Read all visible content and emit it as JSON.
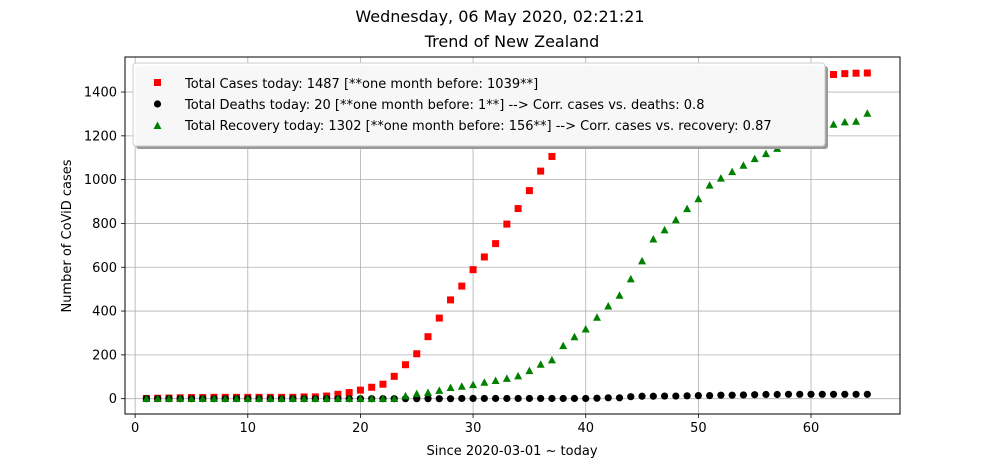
{
  "chart_data": {
    "type": "scatter",
    "supertitle": "Wednesday, 06 May 2020, 02:21:21",
    "title": "Trend of New Zealand",
    "xlabel": "Since 2020-03-01 ~ today",
    "ylabel": "Number of CoViD cases",
    "xlim": [
      -0.9,
      67.9
    ],
    "ylim": [
      -70,
      1560
    ],
    "x_ticks": [
      0,
      10,
      20,
      30,
      40,
      50,
      60
    ],
    "y_ticks": [
      0,
      200,
      400,
      600,
      800,
      1000,
      1200,
      1400
    ],
    "grid": true,
    "legend_position": "upper-left",
    "series": [
      {
        "name": "Total Cases today: 1487 [**one month before: 1039**]",
        "marker": "square",
        "color": "#ff0000",
        "x": [
          1,
          2,
          3,
          4,
          5,
          6,
          7,
          8,
          9,
          10,
          11,
          12,
          13,
          14,
          15,
          16,
          17,
          18,
          19,
          20,
          21,
          22,
          23,
          24,
          25,
          26,
          27,
          28,
          29,
          30,
          31,
          32,
          33,
          34,
          35,
          36,
          37,
          38,
          39,
          40,
          41,
          42,
          43,
          44,
          45,
          46,
          47,
          48,
          49,
          50,
          51,
          52,
          53,
          54,
          55,
          56,
          57,
          58,
          59,
          60,
          61,
          62,
          63,
          64,
          65
        ],
        "y": [
          1,
          2,
          3,
          4,
          5,
          5,
          6,
          6,
          6,
          6,
          6,
          6,
          6,
          6,
          8,
          8,
          12,
          20,
          28,
          39,
          52,
          66,
          102,
          155,
          205,
          283,
          368,
          451,
          514,
          589,
          647,
          708,
          797,
          868,
          950,
          1039,
          1106,
          1160,
          1210,
          1239,
          1283,
          1312,
          1330,
          1349,
          1366,
          1386,
          1401,
          1409,
          1422,
          1430,
          1440,
          1445,
          1451,
          1456,
          1461,
          1465,
          1469,
          1470,
          1474,
          1476,
          1479,
          1480,
          1484,
          1486,
          1487
        ]
      },
      {
        "name": "Total Deaths today: 20 [**one month before: 1**] --> Corr. cases vs. deaths: 0.8",
        "marker": "circle",
        "color": "#000000",
        "x": [
          1,
          2,
          3,
          4,
          5,
          6,
          7,
          8,
          9,
          10,
          11,
          12,
          13,
          14,
          15,
          16,
          17,
          18,
          19,
          20,
          21,
          22,
          23,
          24,
          25,
          26,
          27,
          28,
          29,
          30,
          31,
          32,
          33,
          34,
          35,
          36,
          37,
          38,
          39,
          40,
          41,
          42,
          43,
          44,
          45,
          46,
          47,
          48,
          49,
          50,
          51,
          52,
          53,
          54,
          55,
          56,
          57,
          58,
          59,
          60,
          61,
          62,
          63,
          64,
          65
        ],
        "y": [
          0,
          0,
          0,
          0,
          0,
          0,
          0,
          0,
          0,
          0,
          0,
          0,
          0,
          0,
          0,
          0,
          0,
          0,
          0,
          0,
          0,
          0,
          0,
          0,
          0,
          0,
          0,
          0,
          1,
          1,
          1,
          1,
          1,
          1,
          1,
          1,
          1,
          1,
          1,
          1,
          2,
          4,
          4,
          9,
          11,
          11,
          12,
          12,
          13,
          14,
          14,
          16,
          16,
          17,
          18,
          19,
          19,
          20,
          20,
          20,
          20,
          20,
          20,
          20,
          20
        ]
      },
      {
        "name": "Total Recovery today: 1302 [**one month before: 156**] --> Corr. cases vs. recovery: 0.87",
        "marker": "triangle",
        "color": "#008000",
        "x": [
          1,
          2,
          3,
          4,
          5,
          6,
          7,
          8,
          9,
          10,
          11,
          12,
          13,
          14,
          15,
          16,
          17,
          18,
          19,
          20,
          21,
          22,
          23,
          24,
          25,
          26,
          27,
          28,
          29,
          30,
          31,
          32,
          33,
          34,
          35,
          36,
          37,
          38,
          39,
          40,
          41,
          42,
          43,
          44,
          45,
          46,
          47,
          48,
          49,
          50,
          51,
          52,
          53,
          54,
          55,
          56,
          57,
          58,
          59,
          60,
          61,
          62,
          63,
          64,
          65
        ],
        "y": [
          0,
          0,
          0,
          0,
          0,
          0,
          0,
          0,
          0,
          0,
          0,
          0,
          0,
          0,
          0,
          0,
          0,
          0,
          0,
          0,
          0,
          0,
          0,
          12,
          22,
          27,
          37,
          50,
          56,
          63,
          74,
          82,
          92,
          103,
          127,
          156,
          176,
          241,
          282,
          317,
          371,
          422,
          471,
          546,
          628,
          728,
          770,
          816,
          867,
          912,
          974,
          1006,
          1036,
          1065,
          1095,
          1118,
          1142,
          1161,
          1180,
          1205,
          1226,
          1252,
          1263,
          1266,
          1302
        ]
      }
    ]
  }
}
